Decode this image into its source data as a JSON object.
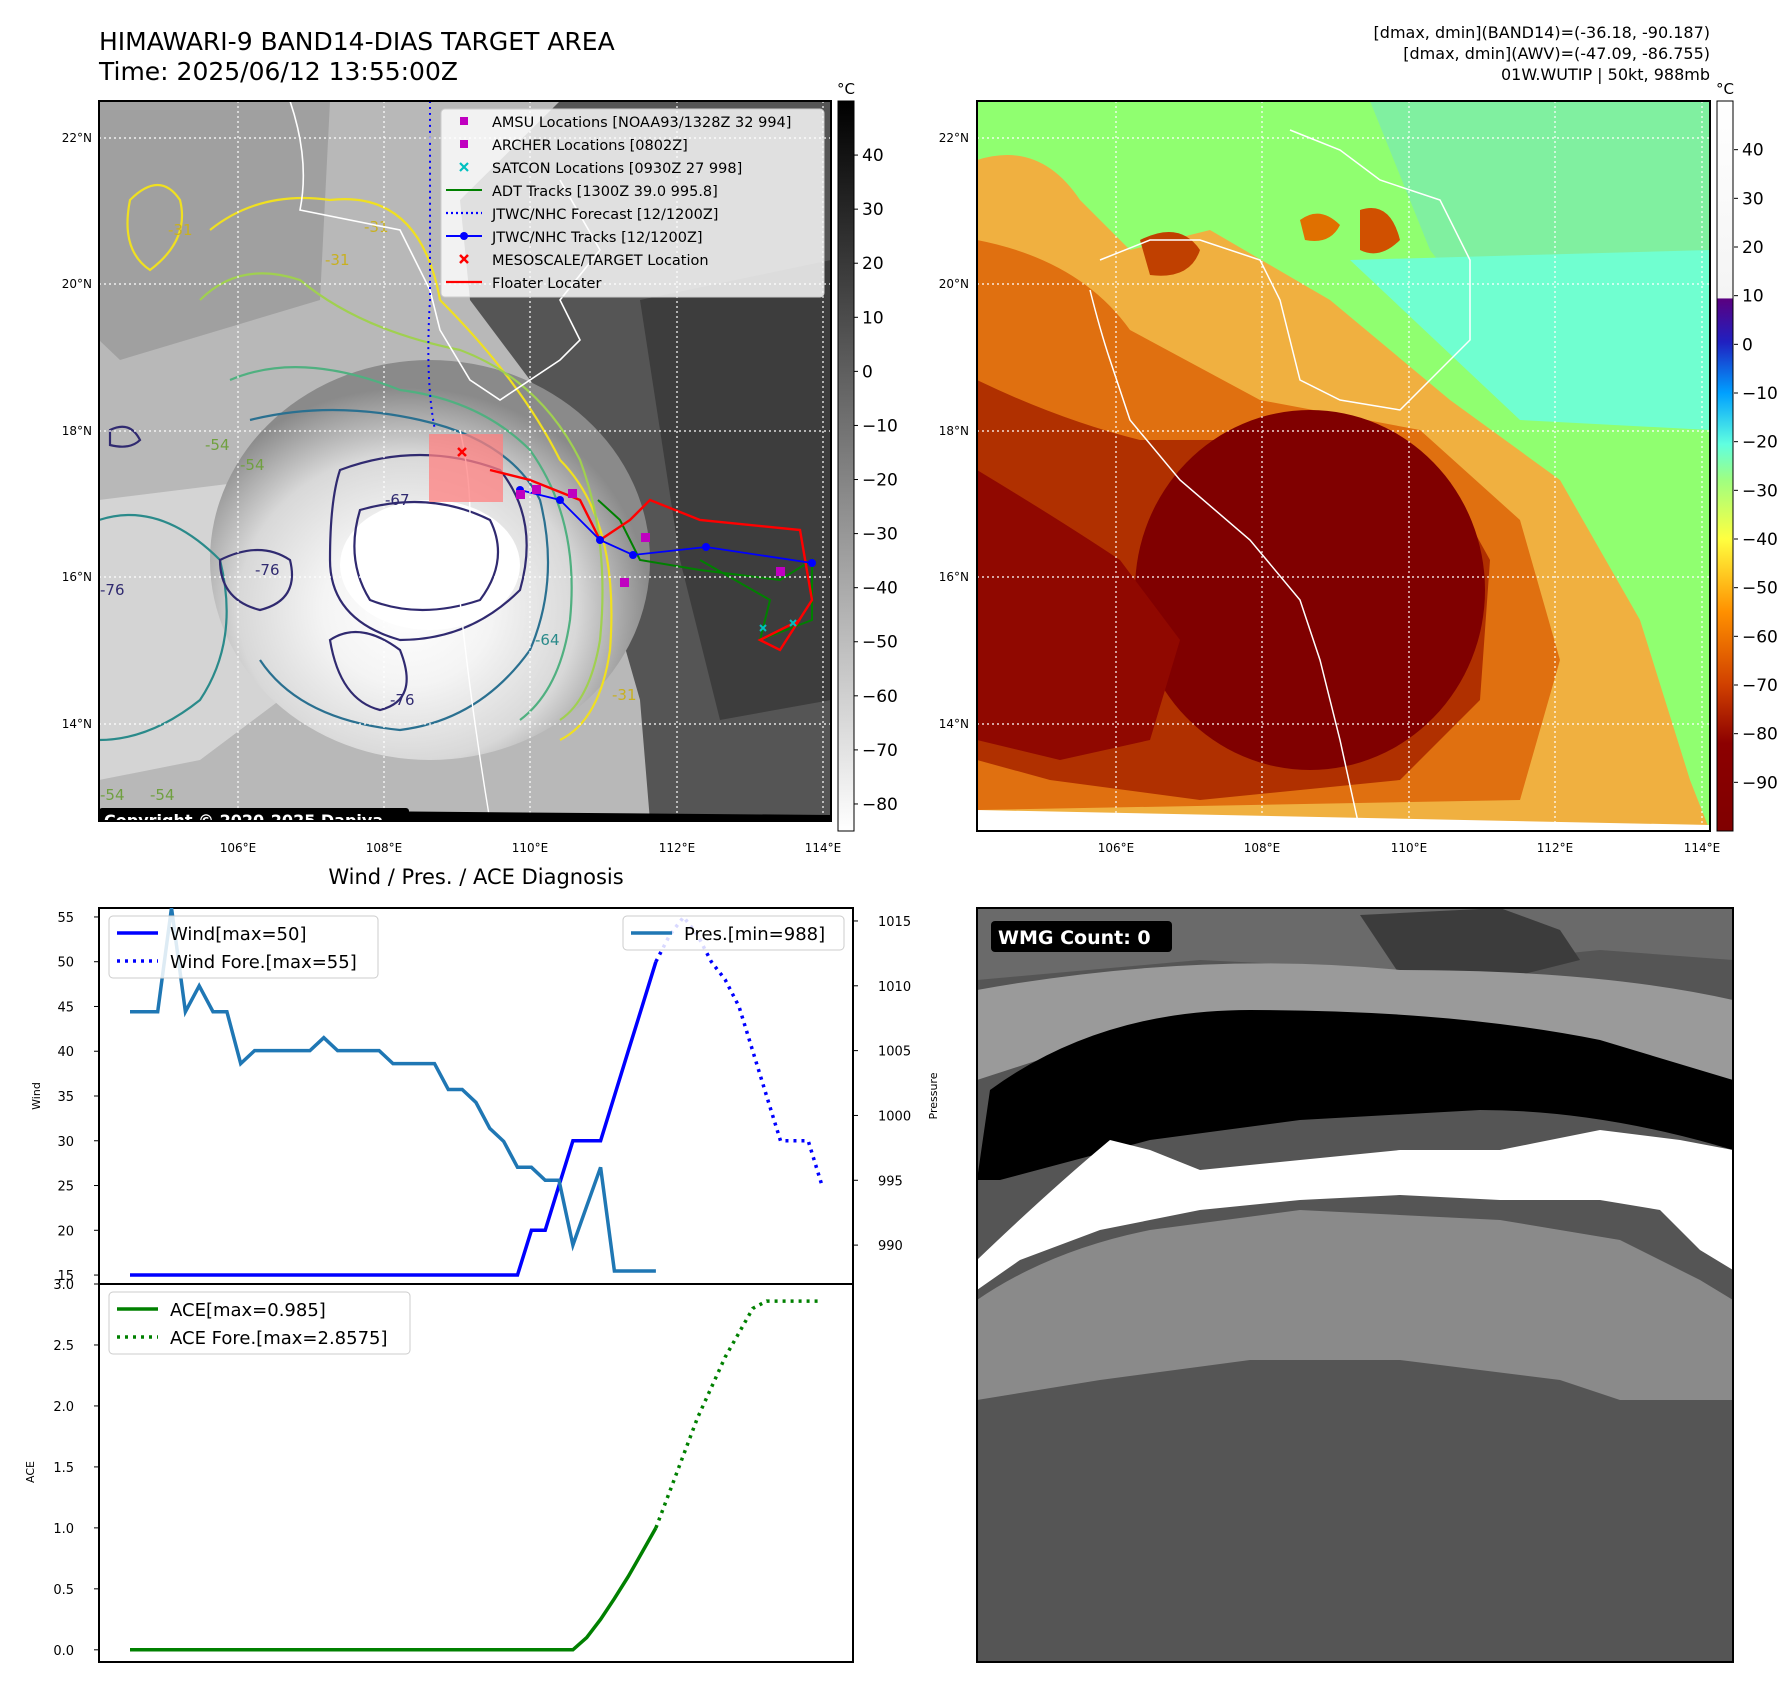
{
  "header": {
    "title": "HIMAWARI-9 BAND14-DIAS TARGET AREA",
    "time": "Time: 2025/06/12 13:55:00Z",
    "info1": "[dmax, dmin](BAND14)=(-36.18, -90.187)",
    "info2": "[dmax, dmin](AWV)=(-47.09, -86.755)",
    "info3": "01W.WUTIP | 50kt, 988mb"
  },
  "map": {
    "lon_ticks": [
      "106°E",
      "108°E",
      "110°E",
      "112°E",
      "114°E"
    ],
    "lat_ticks": [
      "22°N",
      "20°N",
      "18°N",
      "16°N",
      "14°N"
    ],
    "copyright": "Copyright © 2020-2025 Dapiya",
    "unit": "°C",
    "contour_labels": [
      "-31",
      "-31",
      "-31",
      "-31",
      "-54",
      "-54",
      "-54",
      "-54",
      "-64",
      "-67",
      "-76",
      "-76",
      "-76"
    ]
  },
  "legend_items": [
    {
      "label": "AMSU Locations [NOAA93/1328Z 32 994]",
      "color": "#c000c0",
      "marker": "square"
    },
    {
      "label": "ARCHER Locations [0802Z]",
      "color": "#c000c0",
      "marker": "square"
    },
    {
      "label": "SATCON Locations [0930Z 27 998]",
      "color": "#00c0c0",
      "marker": "x"
    },
    {
      "label": "ADT Tracks [1300Z 39.0 995.8]",
      "color": "#008000",
      "marker": "line"
    },
    {
      "label": "JTWC/NHC Forecast [12/1200Z]",
      "color": "#0000ff",
      "marker": "dotted"
    },
    {
      "label": "JTWC/NHC Tracks [12/1200Z]",
      "color": "#0000ff",
      "marker": "line-dot"
    },
    {
      "label": "MESOSCALE/TARGET Location",
      "color": "#ff0000",
      "marker": "x"
    },
    {
      "label": "Floater Locater",
      "color": "#ff0000",
      "marker": "line"
    }
  ],
  "colorbars": {
    "left_ticks": [
      "40",
      "30",
      "20",
      "10",
      "0",
      "−10",
      "−20",
      "−30",
      "−40",
      "−50",
      "−60",
      "−70",
      "−80"
    ],
    "right_ticks": [
      "40",
      "30",
      "20",
      "10",
      "0",
      "−10",
      "−20",
      "−30",
      "−40",
      "−50",
      "−60",
      "−70",
      "−80",
      "−90"
    ],
    "unit_left": "°C",
    "unit_right": "°C"
  },
  "chart_data": [
    {
      "type": "line",
      "title": "Wind / Pres. / ACE Diagnosis",
      "ylabel": "Wind",
      "ylabel_right": "Pressure",
      "ylim": [
        14,
        56
      ],
      "ylim_right": [
        987,
        1016
      ],
      "yticks": [
        "15",
        "20",
        "25",
        "30",
        "35",
        "40",
        "45",
        "50",
        "55"
      ],
      "yticks_right": [
        "990",
        "995",
        "1000",
        "1005",
        "1010",
        "1015"
      ],
      "series": [
        {
          "name": "Wind[max=50]",
          "color": "#0000ff",
          "style": "solid",
          "x": [
            0,
            1,
            2,
            3,
            4,
            5,
            6,
            7,
            8,
            9,
            10,
            11,
            12,
            13,
            14,
            15,
            16,
            17,
            18,
            19,
            20,
            21,
            22,
            23,
            24,
            25,
            26,
            27,
            28,
            29,
            30,
            31,
            32,
            33,
            34,
            35,
            36,
            37,
            38
          ],
          "values": [
            15,
            15,
            15,
            15,
            15,
            15,
            15,
            15,
            15,
            15,
            15,
            15,
            15,
            15,
            15,
            15,
            15,
            15,
            15,
            15,
            15,
            15,
            15,
            15,
            15,
            15,
            15,
            15,
            15,
            20,
            20,
            25,
            30,
            30,
            30,
            35,
            40,
            45,
            50
          ]
        },
        {
          "name": "Wind Fore.[max=55]",
          "color": "#0000ff",
          "style": "dotted",
          "x": [
            38,
            39,
            40,
            41,
            42,
            43,
            44,
            45,
            46,
            47,
            48,
            49,
            50
          ],
          "values": [
            50,
            53,
            55,
            53,
            50,
            48,
            45,
            40,
            35,
            30,
            30,
            30,
            25
          ]
        },
        {
          "name": "Pres.[min=988]",
          "color": "#1f77b4",
          "style": "solid",
          "axis": "right",
          "x": [
            0,
            1,
            2,
            3,
            4,
            5,
            6,
            7,
            8,
            9,
            10,
            11,
            12,
            13,
            14,
            15,
            16,
            17,
            18,
            19,
            20,
            21,
            22,
            23,
            24,
            25,
            26,
            27,
            28,
            29,
            30,
            31,
            32,
            33,
            34,
            35,
            36,
            37,
            38
          ],
          "values": [
            1008,
            1008,
            1008,
            1016,
            1008,
            1010,
            1008,
            1008,
            1004,
            1005,
            1005,
            1005,
            1005,
            1005,
            1006,
            1005,
            1005,
            1005,
            1005,
            1004,
            1004,
            1004,
            1004,
            1002,
            1002,
            1001,
            999,
            998,
            996,
            996,
            995,
            995,
            990,
            993,
            996,
            988,
            988,
            988,
            988
          ]
        }
      ]
    },
    {
      "type": "line",
      "ylabel": "ACE",
      "ylim": [
        -0.1,
        3.0
      ],
      "yticks": [
        "0.0",
        "0.5",
        "1.0",
        "1.5",
        "2.0",
        "2.5",
        "3.0"
      ],
      "series": [
        {
          "name": "ACE[max=0.985]",
          "color": "#008000",
          "style": "solid",
          "x": [
            0,
            1,
            2,
            3,
            4,
            5,
            6,
            7,
            8,
            9,
            10,
            11,
            12,
            13,
            14,
            15,
            16,
            17,
            18,
            19,
            20,
            21,
            22,
            23,
            24,
            25,
            26,
            27,
            28,
            29,
            30,
            31,
            32,
            33,
            34,
            35,
            36,
            37,
            38
          ],
          "values": [
            0,
            0,
            0,
            0,
            0,
            0,
            0,
            0,
            0,
            0,
            0,
            0,
            0,
            0,
            0,
            0,
            0,
            0,
            0,
            0,
            0,
            0,
            0,
            0,
            0,
            0,
            0,
            0,
            0,
            0,
            0,
            0,
            0,
            0.1,
            0.25,
            0.42,
            0.6,
            0.8,
            1.0
          ]
        },
        {
          "name": "ACE Fore.[max=2.8575]",
          "color": "#008000",
          "style": "dotted",
          "x": [
            38,
            39,
            40,
            41,
            42,
            43,
            44,
            45,
            46,
            47,
            48,
            49,
            50
          ],
          "values": [
            1.0,
            1.3,
            1.6,
            1.9,
            2.15,
            2.4,
            2.6,
            2.8,
            2.86,
            2.86,
            2.86,
            2.86,
            2.86
          ]
        }
      ]
    }
  ],
  "wmg": {
    "label": "WMG Count: 0"
  }
}
